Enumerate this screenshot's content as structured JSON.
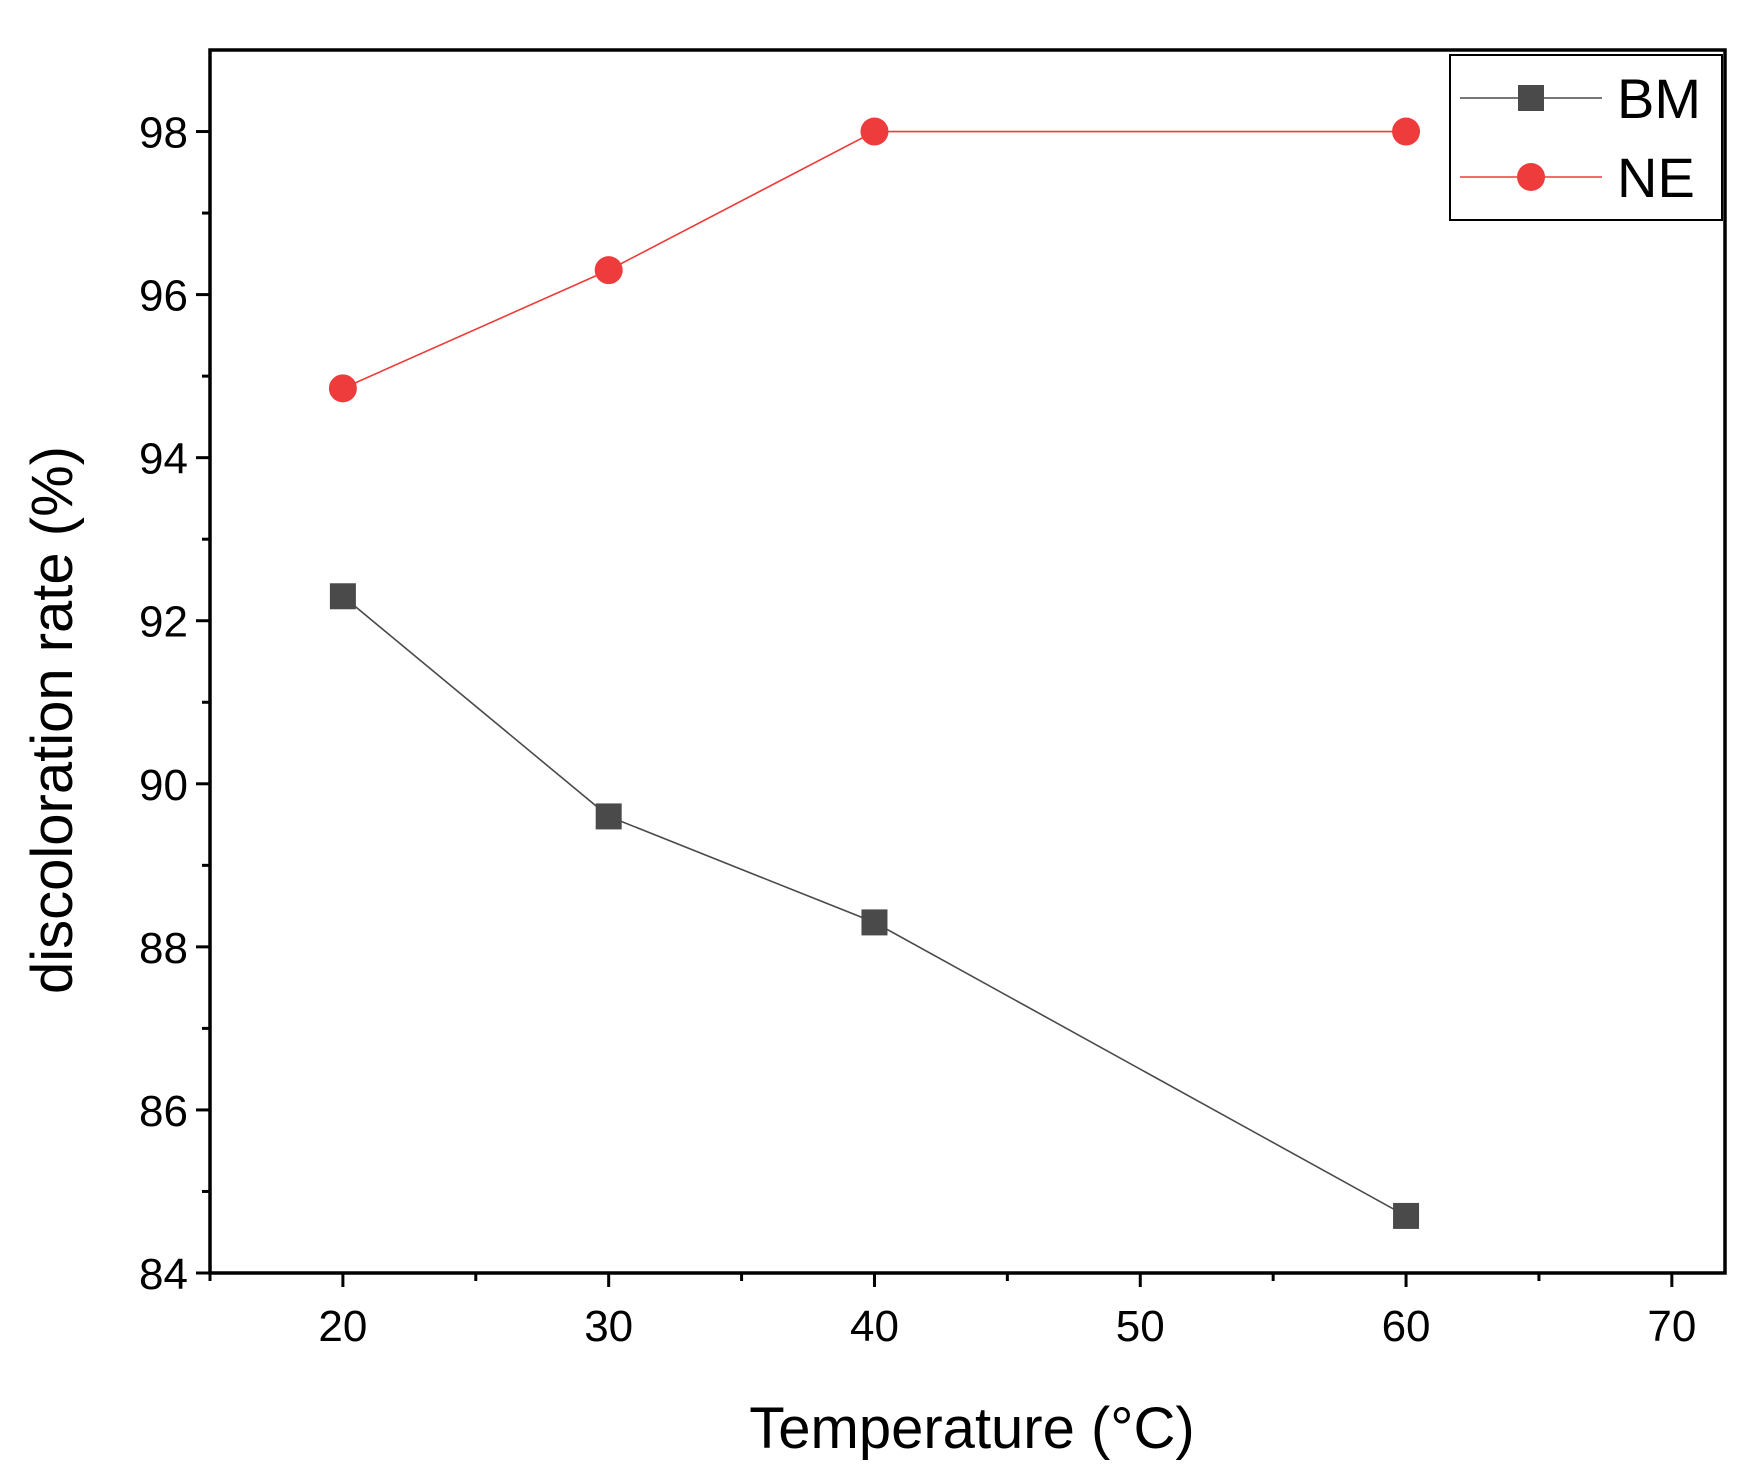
{
  "chart_data": {
    "type": "line",
    "title": "",
    "xlabel": "Temperature (°C)",
    "ylabel": "discoloration rate (%)",
    "xlim": [
      15,
      72
    ],
    "ylim": [
      84,
      99
    ],
    "x_ticks": [
      20,
      30,
      40,
      50,
      60,
      70
    ],
    "x_tick_labels": [
      "20",
      "30",
      "40",
      "50",
      "60",
      "70"
    ],
    "x_minor_ticks": [
      15,
      25,
      35,
      45,
      55,
      65
    ],
    "y_ticks": [
      84,
      86,
      88,
      90,
      92,
      94,
      96,
      98
    ],
    "y_tick_labels": [
      "84",
      "86",
      "88",
      "90",
      "92",
      "94",
      "96",
      "98"
    ],
    "y_minor_ticks": [
      85,
      87,
      89,
      91,
      93,
      95,
      97
    ],
    "grid": false,
    "legend_position": "top-right",
    "series": [
      {
        "name": "BM",
        "marker": "square",
        "color": "#4a4a4a",
        "x": [
          20,
          30,
          40,
          60
        ],
        "values": [
          92.3,
          89.6,
          88.3,
          84.7
        ]
      },
      {
        "name": "NE",
        "marker": "circle",
        "color": "#ee3b3b",
        "x": [
          20,
          30,
          40,
          60
        ],
        "values": [
          94.85,
          96.3,
          98.0,
          98.0
        ]
      }
    ]
  }
}
